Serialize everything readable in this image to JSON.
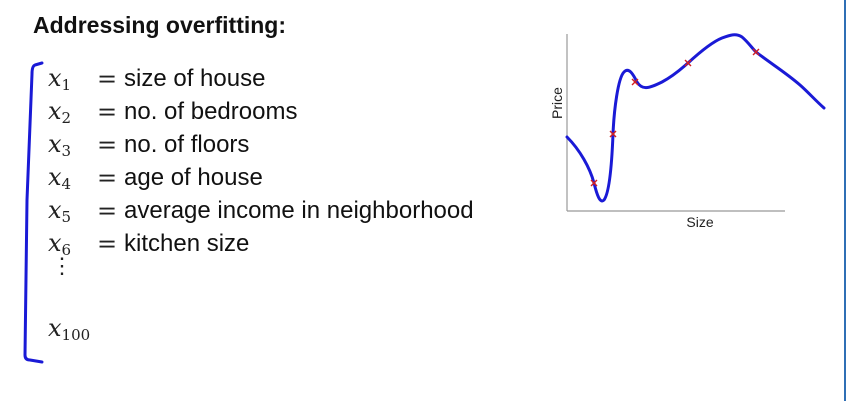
{
  "title": "Addressing overfitting:",
  "features": [
    {
      "var": "x",
      "sub": "1",
      "eq": "=",
      "desc": "size of house"
    },
    {
      "var": "x",
      "sub": "2",
      "eq": "=",
      "desc": "no. of bedrooms"
    },
    {
      "var": "x",
      "sub": "3",
      "eq": "=",
      "desc": "no. of floors"
    },
    {
      "var": "x",
      "sub": "4",
      "eq": "=",
      "desc": "age of house"
    },
    {
      "var": "x",
      "sub": "5",
      "eq": "=",
      "desc": "average income in neighborhood"
    },
    {
      "var": "x",
      "sub": "6",
      "eq": "=",
      "desc": "kitchen size"
    }
  ],
  "ellipsis": "⋮",
  "last_feature": {
    "var": "x",
    "sub": "100"
  },
  "plot": {
    "ylabel": "Price",
    "xlabel": "Size",
    "curve_color": "#1a1ad6",
    "marker_color": "#d42020",
    "axis_color": "#999999"
  },
  "colors": {
    "bracket": "#1a1ad6",
    "right_border": "#2f6fb5"
  }
}
